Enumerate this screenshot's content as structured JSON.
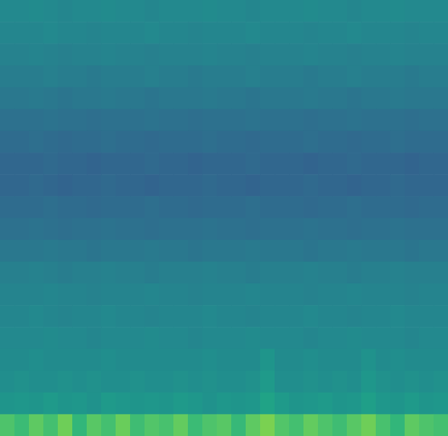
{
  "chart_data": {
    "type": "heatmap",
    "color": "viridis",
    "zlim": [
      0,
      1
    ],
    "tick_labels": false,
    "values": [
      [
        0.47,
        0.47,
        0.48,
        0.47,
        0.46,
        0.47,
        0.47,
        0.48,
        0.47,
        0.47,
        0.46,
        0.47,
        0.47,
        0.47,
        0.48,
        0.47,
        0.47,
        0.46,
        0.47,
        0.47,
        0.47,
        0.48,
        0.47,
        0.47,
        0.46,
        0.47,
        0.47,
        0.48,
        0.47,
        0.47,
        0.47
      ],
      [
        0.46,
        0.46,
        0.46,
        0.47,
        0.46,
        0.46,
        0.45,
        0.46,
        0.46,
        0.46,
        0.47,
        0.46,
        0.46,
        0.45,
        0.46,
        0.46,
        0.46,
        0.47,
        0.46,
        0.46,
        0.46,
        0.45,
        0.46,
        0.46,
        0.47,
        0.46,
        0.46,
        0.46,
        0.45,
        0.46,
        0.46
      ],
      [
        0.44,
        0.44,
        0.45,
        0.44,
        0.43,
        0.44,
        0.44,
        0.45,
        0.44,
        0.44,
        0.43,
        0.44,
        0.44,
        0.44,
        0.45,
        0.44,
        0.44,
        0.43,
        0.44,
        0.44,
        0.44,
        0.45,
        0.44,
        0.44,
        0.43,
        0.44,
        0.44,
        0.45,
        0.44,
        0.44,
        0.44
      ],
      [
        0.42,
        0.42,
        0.42,
        0.43,
        0.42,
        0.42,
        0.41,
        0.42,
        0.42,
        0.42,
        0.43,
        0.42,
        0.42,
        0.41,
        0.42,
        0.42,
        0.42,
        0.43,
        0.42,
        0.42,
        0.42,
        0.41,
        0.42,
        0.42,
        0.43,
        0.42,
        0.42,
        0.42,
        0.41,
        0.42,
        0.42
      ],
      [
        0.4,
        0.4,
        0.41,
        0.4,
        0.39,
        0.4,
        0.4,
        0.41,
        0.4,
        0.4,
        0.39,
        0.4,
        0.4,
        0.4,
        0.41,
        0.4,
        0.4,
        0.39,
        0.4,
        0.4,
        0.4,
        0.41,
        0.4,
        0.4,
        0.39,
        0.4,
        0.4,
        0.41,
        0.4,
        0.4,
        0.4
      ],
      [
        0.37,
        0.37,
        0.37,
        0.38,
        0.37,
        0.37,
        0.36,
        0.37,
        0.37,
        0.37,
        0.38,
        0.37,
        0.37,
        0.36,
        0.37,
        0.37,
        0.37,
        0.38,
        0.37,
        0.37,
        0.37,
        0.36,
        0.37,
        0.37,
        0.38,
        0.37,
        0.37,
        0.37,
        0.36,
        0.37,
        0.37
      ],
      [
        0.35,
        0.35,
        0.36,
        0.35,
        0.34,
        0.35,
        0.35,
        0.36,
        0.35,
        0.35,
        0.34,
        0.35,
        0.35,
        0.35,
        0.36,
        0.35,
        0.35,
        0.34,
        0.35,
        0.35,
        0.35,
        0.36,
        0.35,
        0.35,
        0.34,
        0.35,
        0.35,
        0.36,
        0.35,
        0.35,
        0.35
      ],
      [
        0.33,
        0.33,
        0.33,
        0.34,
        0.33,
        0.33,
        0.32,
        0.33,
        0.33,
        0.33,
        0.34,
        0.33,
        0.33,
        0.32,
        0.33,
        0.33,
        0.33,
        0.34,
        0.33,
        0.33,
        0.33,
        0.32,
        0.33,
        0.33,
        0.34,
        0.33,
        0.33,
        0.33,
        0.32,
        0.33,
        0.33
      ],
      [
        0.33,
        0.33,
        0.34,
        0.33,
        0.32,
        0.33,
        0.33,
        0.34,
        0.33,
        0.33,
        0.32,
        0.33,
        0.33,
        0.33,
        0.34,
        0.33,
        0.33,
        0.32,
        0.33,
        0.33,
        0.33,
        0.34,
        0.33,
        0.33,
        0.32,
        0.33,
        0.33,
        0.34,
        0.33,
        0.33,
        0.33
      ],
      [
        0.35,
        0.35,
        0.35,
        0.36,
        0.35,
        0.35,
        0.34,
        0.35,
        0.35,
        0.35,
        0.36,
        0.35,
        0.35,
        0.34,
        0.35,
        0.35,
        0.35,
        0.36,
        0.35,
        0.35,
        0.35,
        0.34,
        0.35,
        0.35,
        0.36,
        0.35,
        0.35,
        0.35,
        0.34,
        0.35,
        0.35
      ],
      [
        0.37,
        0.37,
        0.38,
        0.37,
        0.36,
        0.37,
        0.37,
        0.38,
        0.37,
        0.37,
        0.36,
        0.37,
        0.37,
        0.37,
        0.38,
        0.37,
        0.37,
        0.36,
        0.37,
        0.37,
        0.37,
        0.38,
        0.37,
        0.37,
        0.36,
        0.37,
        0.37,
        0.38,
        0.37,
        0.37,
        0.37
      ],
      [
        0.4,
        0.4,
        0.4,
        0.41,
        0.4,
        0.4,
        0.39,
        0.4,
        0.4,
        0.4,
        0.41,
        0.4,
        0.4,
        0.39,
        0.4,
        0.4,
        0.4,
        0.41,
        0.4,
        0.4,
        0.4,
        0.39,
        0.4,
        0.4,
        0.41,
        0.4,
        0.4,
        0.4,
        0.39,
        0.4,
        0.4
      ],
      [
        0.43,
        0.43,
        0.44,
        0.43,
        0.42,
        0.43,
        0.43,
        0.44,
        0.43,
        0.43,
        0.42,
        0.43,
        0.43,
        0.43,
        0.44,
        0.43,
        0.43,
        0.42,
        0.43,
        0.43,
        0.43,
        0.44,
        0.43,
        0.43,
        0.42,
        0.43,
        0.43,
        0.44,
        0.43,
        0.43,
        0.43
      ],
      [
        0.45,
        0.45,
        0.45,
        0.46,
        0.45,
        0.45,
        0.44,
        0.45,
        0.45,
        0.45,
        0.46,
        0.45,
        0.45,
        0.44,
        0.45,
        0.45,
        0.45,
        0.46,
        0.45,
        0.45,
        0.45,
        0.44,
        0.45,
        0.45,
        0.46,
        0.45,
        0.45,
        0.45,
        0.44,
        0.45,
        0.45
      ],
      [
        0.46,
        0.46,
        0.47,
        0.46,
        0.45,
        0.46,
        0.46,
        0.47,
        0.46,
        0.46,
        0.45,
        0.46,
        0.46,
        0.46,
        0.47,
        0.46,
        0.46,
        0.45,
        0.46,
        0.46,
        0.46,
        0.47,
        0.46,
        0.46,
        0.45,
        0.46,
        0.46,
        0.47,
        0.46,
        0.46,
        0.46
      ],
      [
        0.47,
        0.47,
        0.47,
        0.48,
        0.47,
        0.47,
        0.46,
        0.47,
        0.47,
        0.47,
        0.48,
        0.47,
        0.47,
        0.46,
        0.47,
        0.47,
        0.47,
        0.48,
        0.47,
        0.47,
        0.47,
        0.46,
        0.47,
        0.47,
        0.48,
        0.47,
        0.47,
        0.47,
        0.46,
        0.47,
        0.47
      ],
      [
        0.48,
        0.48,
        0.49,
        0.48,
        0.48,
        0.48,
        0.48,
        0.49,
        0.48,
        0.48,
        0.48,
        0.48,
        0.48,
        0.48,
        0.49,
        0.48,
        0.48,
        0.48,
        0.52,
        0.48,
        0.48,
        0.49,
        0.48,
        0.48,
        0.48,
        0.51,
        0.48,
        0.49,
        0.48,
        0.48,
        0.48
      ],
      [
        0.49,
        0.5,
        0.49,
        0.49,
        0.5,
        0.49,
        0.5,
        0.49,
        0.49,
        0.5,
        0.49,
        0.49,
        0.5,
        0.49,
        0.5,
        0.49,
        0.49,
        0.5,
        0.54,
        0.49,
        0.49,
        0.5,
        0.49,
        0.5,
        0.49,
        0.53,
        0.5,
        0.49,
        0.5,
        0.49,
        0.5
      ],
      [
        0.52,
        0.53,
        0.52,
        0.54,
        0.52,
        0.53,
        0.51,
        0.54,
        0.53,
        0.52,
        0.53,
        0.52,
        0.54,
        0.53,
        0.51,
        0.53,
        0.52,
        0.53,
        0.58,
        0.54,
        0.52,
        0.53,
        0.54,
        0.52,
        0.53,
        0.56,
        0.53,
        0.52,
        0.54,
        0.52,
        0.53
      ],
      [
        0.72,
        0.68,
        0.75,
        0.7,
        0.78,
        0.66,
        0.74,
        0.7,
        0.77,
        0.69,
        0.73,
        0.71,
        0.76,
        0.68,
        0.72,
        0.74,
        0.67,
        0.75,
        0.8,
        0.73,
        0.7,
        0.76,
        0.72,
        0.69,
        0.74,
        0.78,
        0.71,
        0.66,
        0.75,
        0.72,
        0.7
      ]
    ]
  }
}
